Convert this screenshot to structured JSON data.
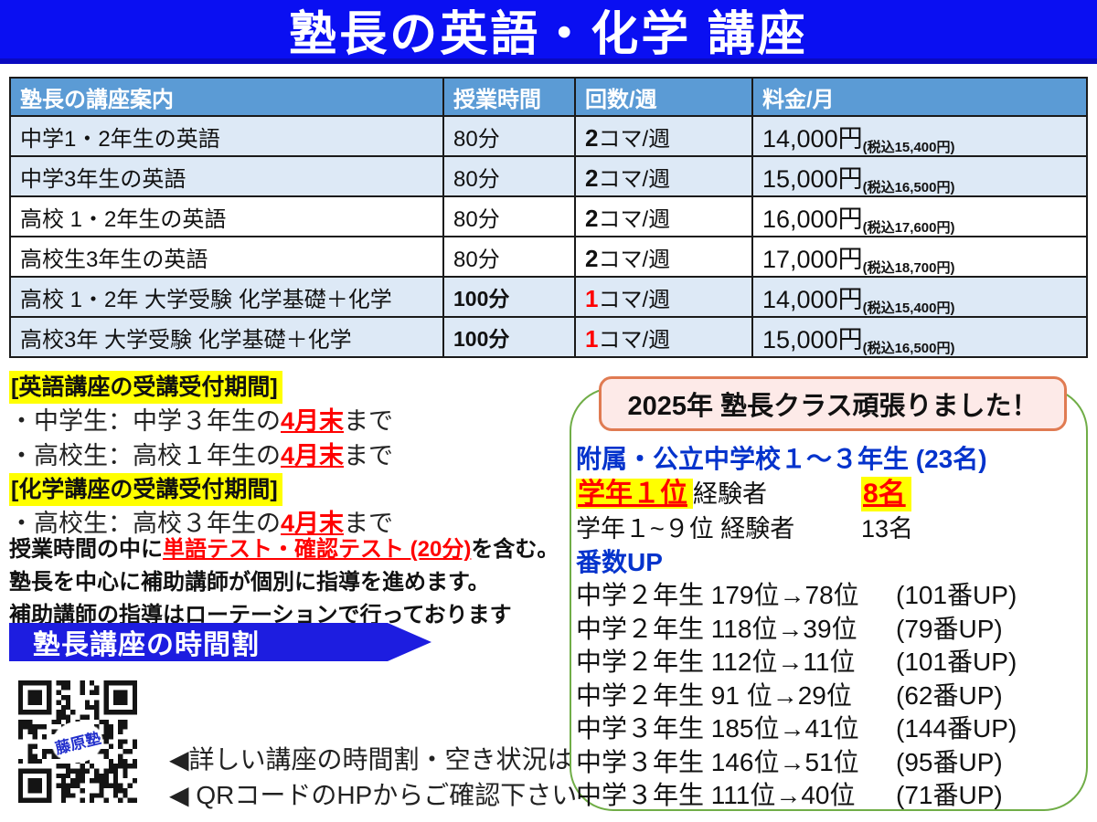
{
  "title": "塾長の英語・化学 講座",
  "colors": {
    "banner_blue": "#0a0ff2",
    "arrow_banner_blue": "#1d1de0",
    "table_header_blue": "#5b9bd5",
    "table_row_shade": "#dde9f6",
    "highlight_yellow": "#ffff00",
    "accent_red": "#ff0000",
    "results_border_green": "#70ad47",
    "badge_border_orange": "#e07b52",
    "badge_bg_pink": "#fdeae8",
    "text_blue": "#0433cc"
  },
  "table": {
    "headers": [
      "塾長の講座案内",
      "授業時間",
      "回数/週",
      "料金/月"
    ],
    "rows": [
      {
        "course": "中学1・2年生の英語",
        "duration": "80分",
        "count_num": "2",
        "count_unit": "コマ/週",
        "price": "14,000円",
        "tax": "(税込15,400円)"
      },
      {
        "course": "中学3年生の英語",
        "duration": "80分",
        "count_num": "2",
        "count_unit": "コマ/週",
        "price": "15,000円",
        "tax": "(税込16,500円)"
      },
      {
        "course": "高校 1・2年生の英語",
        "duration": "80分",
        "count_num": "2",
        "count_unit": "コマ/週",
        "price": "16,000円",
        "tax": "(税込17,600円)"
      },
      {
        "course": "高校生3年生の英語",
        "duration": "80分",
        "count_num": "2",
        "count_unit": "コマ/週",
        "price": "17,000円",
        "tax": "(税込18,700円)"
      },
      {
        "course": "高校 1・2年 大学受験 化学基礎＋化学",
        "duration": "100分",
        "count_num": "1",
        "count_unit": "コマ/週",
        "price": "14,000円",
        "tax": "(税込15,400円)"
      },
      {
        "course": "高校3年 大学受験 化学基礎＋化学",
        "duration": "100分",
        "count_num": "1",
        "count_unit": "コマ/週",
        "price": "15,000円",
        "tax": "(税込16,500円)"
      }
    ]
  },
  "reception": {
    "english_title": "[英語講座の受講受付期間]",
    "items_english": [
      {
        "pre": "・中学生：中学３年生の",
        "em": "4月末",
        "post": "まで"
      },
      {
        "pre": "・高校生：高校１年生の",
        "em": "4月末",
        "post": "まで"
      }
    ],
    "chemistry_title": "[化学講座の受講受付期間]",
    "items_chemistry": [
      {
        "pre": "・高校生：高校３年生の",
        "em": "4月末",
        "post": "まで"
      }
    ]
  },
  "notes": {
    "line1_pre": "授業時間の中に",
    "line1_em": "単語テスト・確認テスト (20分)",
    "line1_post": "を含む。",
    "line2": "塾長を中心に補助講師が個別に指導を進めます。",
    "line3": "補助講師の指導はローテーションで行っております"
  },
  "schedule_banner": "塾長講座の時間割",
  "qr": {
    "label": "藤原塾",
    "note1": "◀詳しい講座の時間割・空き状況は",
    "note2": "◀ QRコードのHPからご確認下さい"
  },
  "results": {
    "badge": "2025年 塾長クラス頑張りました！",
    "school_line": "附属・公立中学校１～３年生 (23名)",
    "rank1_label": "学年１位",
    "rank1_mid": "経験者",
    "rank1_value": "8名",
    "rank19_label": "学年１~９位 経験者",
    "rank19_value": "13名",
    "updown_title": "番数UP",
    "improvements": [
      {
        "who": "中学２年生 179位→78位",
        "gain": "(101番UP)"
      },
      {
        "who": "中学２年生 118位→39位",
        "gain": "(79番UP)"
      },
      {
        "who": "中学２年生 112位→11位",
        "gain": "(101番UP)"
      },
      {
        "who": "中学２年生 91 位→29位",
        "gain": "(62番UP)"
      },
      {
        "who": "中学３年生 185位→41位",
        "gain": "(144番UP)"
      },
      {
        "who": "中学３年生 146位→51位",
        "gain": "(95番UP)"
      },
      {
        "who": "中学３年生 111位→40位",
        "gain": "(71番UP)"
      }
    ]
  }
}
